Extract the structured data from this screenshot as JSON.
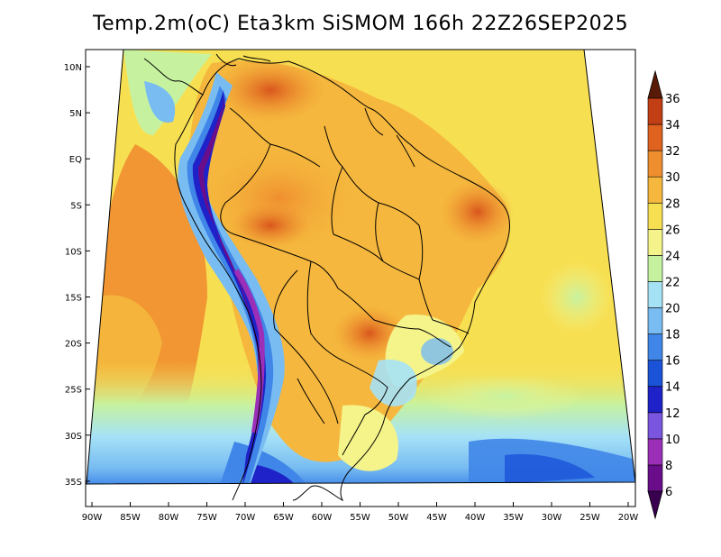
{
  "title": "Temp.2m(oC) Eta3km SiSMOM 166h 22Z26SEP2025",
  "lat_labels": [
    "10N",
    "5N",
    "EQ",
    "5S",
    "10S",
    "15S",
    "20S",
    "25S",
    "30S",
    "35S"
  ],
  "lon_labels": [
    "90W",
    "85W",
    "80W",
    "75W",
    "70W",
    "65W",
    "60W",
    "55W",
    "50W",
    "45W",
    "40W",
    "35W",
    "30W",
    "25W",
    "20W"
  ],
  "colorbar": {
    "labels": [
      "6",
      "8",
      "10",
      "12",
      "14",
      "16",
      "18",
      "20",
      "22",
      "24",
      "26",
      "28",
      "30",
      "32",
      "34",
      "36"
    ],
    "colors": [
      "#6a0d8a",
      "#9b2fb8",
      "#7a55e0",
      "#1e22c8",
      "#1a52d8",
      "#3f86e8",
      "#78bcf2",
      "#a6e2f6",
      "#c6f2a0",
      "#f4f48a",
      "#f7df52",
      "#f5b73d",
      "#ef8e2f",
      "#e0621f",
      "#c23e14",
      "#8a2a0c"
    ],
    "arrow_low_color": "#3a0050",
    "arrow_high_color": "#5a1a08"
  }
}
